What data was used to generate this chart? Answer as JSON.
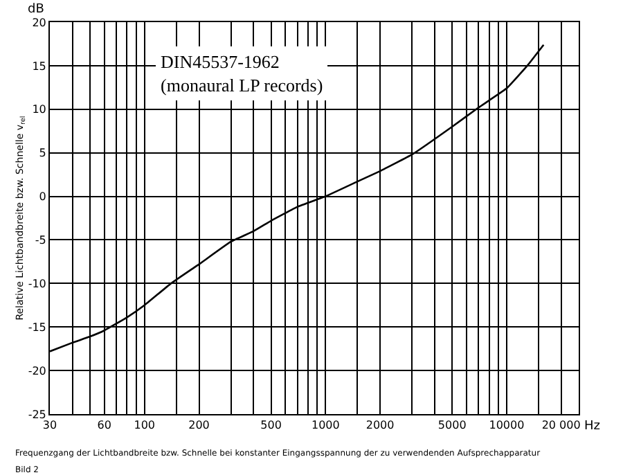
{
  "chart_data": {
    "type": "line",
    "ylabel": "Relative Lichtbandbreite bzw. Schnelle v$_{rel}$",
    "annotations": [
      "DIN45537-1962\n(monaural LP records)",
      "dB",
      "Hz",
      "Frequenzgang der Lichtbandbreite bzw. Schnelle bei konstanter Eingangsspannung der zu verwendenden Aufsprechapparatur",
      "Bild 2"
    ],
    "series": [
      {
        "color": "#000000",
        "x": [
          30,
          40,
          50,
          60,
          80,
          100,
          140,
          200,
          300,
          400,
          500,
          700,
          1000,
          1500,
          2000,
          3000,
          5000,
          7000,
          10000,
          13000,
          16000
        ],
        "values": [
          -17.8,
          -16.8,
          -16.1,
          -15.4,
          -13.9,
          -12.5,
          -10,
          -7.8,
          -5.2,
          -4,
          -2.8,
          -1.2,
          0,
          1.7,
          2.9,
          4.8,
          8,
          10.2,
          12.4,
          15,
          17.4
        ]
      }
    ],
    "log": "x",
    "xlim": [
      30,
      25000
    ],
    "xticks": [
      30,
      {
        "value": 40,
        "label": null
      },
      {
        "value": 50,
        "label": null
      },
      60,
      {
        "value": 70,
        "label": null
      },
      {
        "value": 80,
        "label": null
      },
      {
        "value": 90,
        "label": null
      },
      100,
      {
        "value": 150,
        "label": null
      },
      200,
      {
        "value": 300,
        "label": null
      },
      {
        "value": 400,
        "label": null
      },
      500,
      {
        "value": 600,
        "label": null
      },
      {
        "value": 700,
        "label": null
      },
      {
        "value": 800,
        "label": null
      },
      {
        "value": 900,
        "label": null
      },
      1000,
      {
        "value": 1500,
        "label": null
      },
      2000,
      {
        "value": 3000,
        "label": null
      },
      {
        "value": 4000,
        "label": null
      },
      5000,
      {
        "value": 6000,
        "label": null
      },
      {
        "value": 7000,
        "label": null
      },
      {
        "value": 8000,
        "label": null
      },
      {
        "value": 9000,
        "label": null
      },
      10000,
      {
        "value": 15000,
        "label": null
      },
      {
        "value": 20000,
        "label": "20 000"
      }
    ],
    "ylim": [
      -25,
      20
    ],
    "yticks": [
      -25,
      -20,
      -15,
      -10,
      -5,
      0,
      5,
      10,
      15,
      20
    ],
    "grid": true,
    "marker": "none",
    "line_style": "solid"
  }
}
